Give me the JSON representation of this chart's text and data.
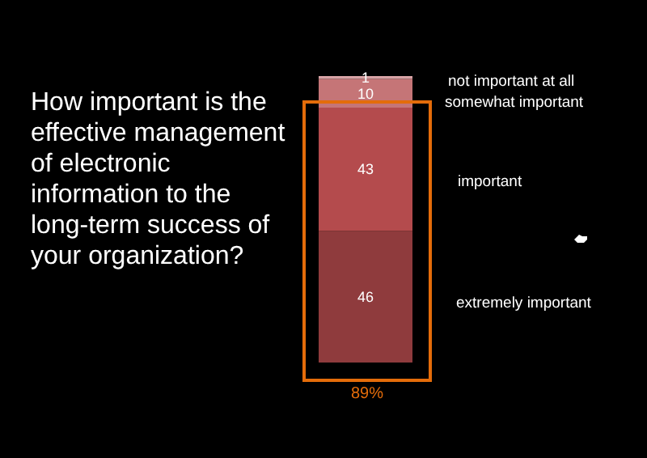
{
  "chart_data": {
    "type": "bar",
    "title": "How important is the effective management of electronic information to the long-term success of your organization?",
    "categories": [
      null
    ],
    "stacked": true,
    "data_labels": true,
    "series": [
      {
        "name": "extremely important",
        "color": "#8f3b3d",
        "values": [
          46
        ]
      },
      {
        "name": "important",
        "color": "#b44b4d",
        "values": [
          43
        ]
      },
      {
        "name": "somewhat important",
        "color": "#c57577",
        "values": [
          10
        ]
      },
      {
        "name": "not important at all",
        "color": "#d8a3a5",
        "values": [
          1
        ]
      }
    ],
    "annotations": [
      "89%"
    ]
  }
}
